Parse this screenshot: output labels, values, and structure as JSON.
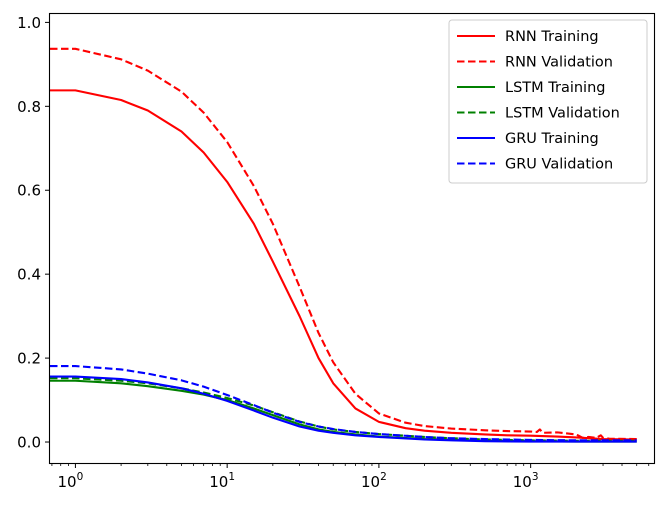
{
  "chart_data": {
    "type": "line",
    "title": "",
    "xlabel": "",
    "ylabel": "",
    "xscale": "log",
    "xlim": [
      0.68,
      6500
    ],
    "ylim": [
      -0.05,
      1.02
    ],
    "grid": false,
    "legend_position": "top-right",
    "x_ticks": [
      {
        "value": 1,
        "base": "10",
        "exp": "0"
      },
      {
        "value": 10,
        "base": "10",
        "exp": "1"
      },
      {
        "value": 100,
        "base": "10",
        "exp": "2"
      },
      {
        "value": 1000,
        "base": "10",
        "exp": "3"
      }
    ],
    "y_ticks": [
      {
        "value": 0.0,
        "label": "0.0"
      },
      {
        "value": 0.2,
        "label": "0.2"
      },
      {
        "value": 0.4,
        "label": "0.4"
      },
      {
        "value": 0.6,
        "label": "0.6"
      },
      {
        "value": 0.8,
        "label": "0.8"
      },
      {
        "value": 1.0,
        "label": "1.0"
      }
    ],
    "series": [
      {
        "name": "RNN Training",
        "color": "#ff0000",
        "dash": "solid",
        "x": [
          0.68,
          1,
          2,
          3,
          5,
          7,
          10,
          15,
          20,
          30,
          40,
          50,
          70,
          100,
          150,
          200,
          300,
          500,
          700,
          1000,
          1500,
          2000,
          3000,
          5000
        ],
        "y": [
          0.838,
          0.838,
          0.815,
          0.79,
          0.74,
          0.69,
          0.62,
          0.52,
          0.43,
          0.3,
          0.2,
          0.14,
          0.08,
          0.048,
          0.033,
          0.027,
          0.022,
          0.018,
          0.016,
          0.015,
          0.013,
          0.011,
          0.007,
          0.006
        ]
      },
      {
        "name": "RNN Validation",
        "color": "#ff0000",
        "dash": "dashed",
        "x": [
          0.68,
          1,
          2,
          3,
          5,
          7,
          10,
          15,
          20,
          30,
          40,
          50,
          70,
          100,
          150,
          200,
          300,
          500,
          700,
          1000,
          1100,
          1150,
          1200,
          1500,
          2000,
          2200,
          2400,
          2700,
          2900,
          3000,
          3300,
          5000
        ],
        "y": [
          0.937,
          0.937,
          0.912,
          0.885,
          0.835,
          0.785,
          0.715,
          0.61,
          0.52,
          0.37,
          0.26,
          0.19,
          0.115,
          0.068,
          0.046,
          0.038,
          0.032,
          0.028,
          0.026,
          0.025,
          0.024,
          0.03,
          0.022,
          0.023,
          0.018,
          0.01,
          0.012,
          0.01,
          0.016,
          0.01,
          0.008,
          0.007
        ]
      },
      {
        "name": "LSTM Training",
        "color": "#008000",
        "dash": "solid",
        "x": [
          0.68,
          1,
          2,
          3,
          5,
          7,
          10,
          15,
          20,
          30,
          40,
          50,
          70,
          100,
          200,
          300,
          500,
          1000,
          2000,
          5000
        ],
        "y": [
          0.146,
          0.146,
          0.14,
          0.133,
          0.122,
          0.113,
          0.1,
          0.08,
          0.064,
          0.042,
          0.03,
          0.024,
          0.018,
          0.013,
          0.007,
          0.005,
          0.003,
          0.002,
          0.001,
          0.001
        ]
      },
      {
        "name": "LSTM Validation",
        "color": "#008000",
        "dash": "dashed",
        "x": [
          0.68,
          1,
          2,
          3,
          5,
          7,
          10,
          15,
          20,
          30,
          40,
          50,
          70,
          100,
          200,
          300,
          500,
          1000,
          2000,
          5000
        ],
        "y": [
          0.152,
          0.152,
          0.146,
          0.14,
          0.128,
          0.118,
          0.105,
          0.087,
          0.071,
          0.049,
          0.037,
          0.03,
          0.024,
          0.019,
          0.012,
          0.009,
          0.006,
          0.004,
          0.003,
          0.003
        ]
      },
      {
        "name": "GRU Training",
        "color": "#0000ff",
        "dash": "solid",
        "x": [
          0.68,
          1,
          2,
          3,
          5,
          7,
          10,
          15,
          20,
          30,
          40,
          50,
          70,
          100,
          200,
          300,
          500,
          1000,
          2000,
          5000
        ],
        "y": [
          0.156,
          0.156,
          0.15,
          0.142,
          0.128,
          0.115,
          0.098,
          0.075,
          0.058,
          0.037,
          0.027,
          0.022,
          0.016,
          0.012,
          0.006,
          0.004,
          0.002,
          0.001,
          0.001,
          0.001
        ]
      },
      {
        "name": "GRU Validation",
        "color": "#0000ff",
        "dash": "dashed",
        "x": [
          0.68,
          1,
          2,
          3,
          5,
          7,
          10,
          15,
          20,
          30,
          40,
          50,
          70,
          100,
          200,
          300,
          500,
          1000,
          2000,
          5000
        ],
        "y": [
          0.181,
          0.181,
          0.173,
          0.163,
          0.147,
          0.132,
          0.112,
          0.088,
          0.07,
          0.048,
          0.037,
          0.031,
          0.024,
          0.019,
          0.012,
          0.009,
          0.007,
          0.005,
          0.004,
          0.004
        ]
      }
    ]
  }
}
